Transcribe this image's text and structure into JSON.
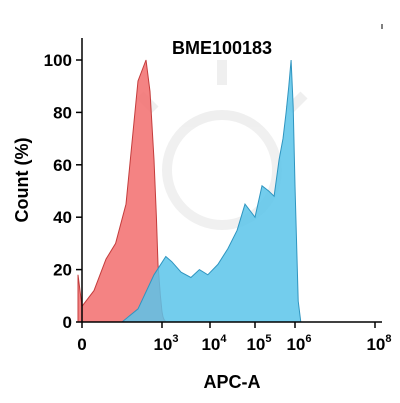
{
  "chart_data": {
    "type": "area",
    "title": "BME100183",
    "xlabel": "APC-A",
    "ylabel": "Count (%)",
    "x_scale": "biexponential",
    "x_ticks": [
      {
        "base": "0",
        "exp": ""
      },
      {
        "base": "10",
        "exp": "3"
      },
      {
        "base": "10",
        "exp": "4"
      },
      {
        "base": "10",
        "exp": "5"
      },
      {
        "base": "10",
        "exp": "6"
      },
      {
        "base": "10",
        "exp": "8"
      }
    ],
    "y_ticks": [
      "0",
      "20",
      "40",
      "60",
      "80",
      "100"
    ],
    "ylim": [
      0,
      100
    ],
    "grid": false,
    "legend": "none",
    "series": [
      {
        "color": "#f26d6d",
        "stroke": "#c43c3c",
        "x": [
          -100,
          0,
          150,
          300,
          420,
          550,
          700,
          800,
          850,
          900,
          930,
          950,
          980,
          1000,
          1050,
          1100,
          1200
        ],
        "y": [
          18,
          6,
          12,
          24,
          30,
          45,
          92,
          100,
          88,
          62,
          40,
          22,
          10,
          4,
          2,
          1,
          0
        ]
      },
      {
        "color": "#5bc4ea",
        "stroke": "#2f95c0",
        "x": [
          500,
          700,
          900,
          1200,
          1600,
          2500,
          4000,
          6000,
          9000,
          15000,
          25000,
          40000,
          60000,
          100000,
          150000,
          220000,
          300000,
          400000,
          500000,
          600000,
          700000,
          800000,
          900000,
          1000000,
          1200000,
          1400000
        ],
        "y": [
          0,
          5,
          18,
          25,
          23,
          19,
          17,
          20,
          18,
          22,
          28,
          35,
          45,
          40,
          52,
          50,
          48,
          62,
          70,
          80,
          90,
          100,
          82,
          52,
          8,
          0
        ]
      }
    ]
  }
}
